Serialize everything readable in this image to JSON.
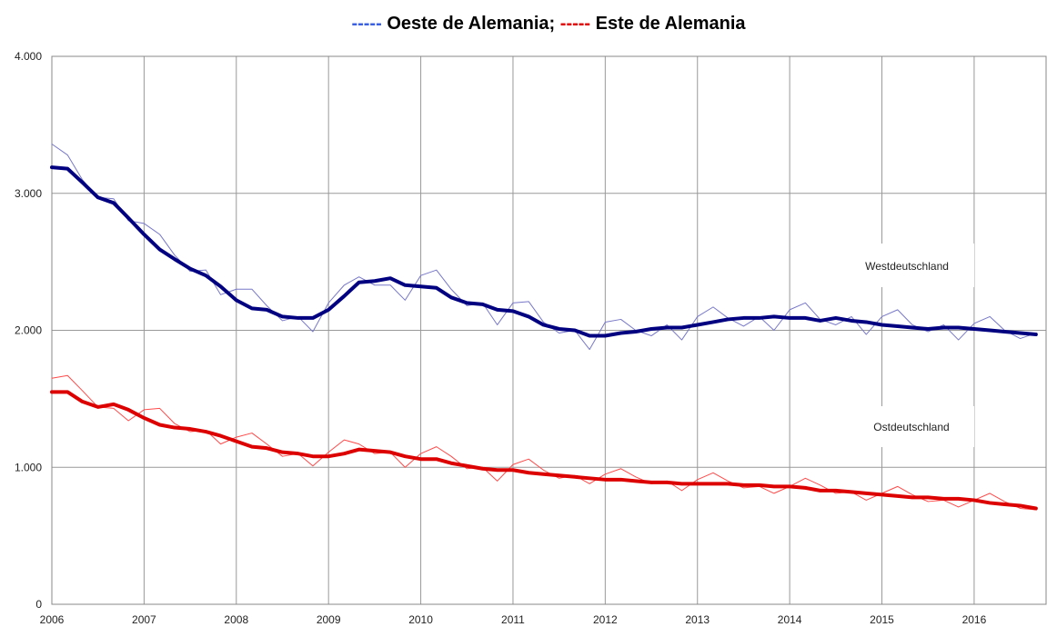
{
  "chart_data": {
    "type": "line",
    "title": [
      {
        "dash": "-----",
        "text": "Oeste de Alemania;",
        "color": "#3a5fe0"
      },
      {
        "dash": "-----",
        "text": "Este de Alemania",
        "color": "#e00000"
      }
    ],
    "annotations": [
      "Westdeutschland",
      "Ostdeutschland"
    ],
    "x": [
      2006,
      2006.17,
      2006.33,
      2006.5,
      2006.67,
      2006.83,
      2007,
      2007.17,
      2007.33,
      2007.5,
      2007.67,
      2007.83,
      2008,
      2008.17,
      2008.33,
      2008.5,
      2008.67,
      2008.83,
      2009,
      2009.17,
      2009.33,
      2009.5,
      2009.67,
      2009.83,
      2010,
      2010.17,
      2010.33,
      2010.5,
      2010.67,
      2010.83,
      2011,
      2011.17,
      2011.33,
      2011.5,
      2011.67,
      2011.83,
      2012,
      2012.17,
      2012.33,
      2012.5,
      2012.67,
      2012.83,
      2013,
      2013.17,
      2013.33,
      2013.5,
      2013.67,
      2013.83,
      2014,
      2014.17,
      2014.33,
      2014.5,
      2014.67,
      2014.83,
      2015,
      2015.17,
      2015.33,
      2015.5,
      2015.67,
      2015.83,
      2016,
      2016.17,
      2016.33,
      2016.5,
      2016.67
    ],
    "series": [
      {
        "color": "#7878c8",
        "width": 1,
        "values": [
          3360,
          3280,
          3100,
          2970,
          2960,
          2800,
          2780,
          2700,
          2550,
          2430,
          2440,
          2260,
          2300,
          2300,
          2180,
          2070,
          2100,
          1990,
          2200,
          2330,
          2390,
          2330,
          2330,
          2220,
          2400,
          2440,
          2300,
          2180,
          2200,
          2040,
          2200,
          2210,
          2060,
          1980,
          2000,
          1860,
          2060,
          2080,
          2000,
          1960,
          2040,
          1930,
          2100,
          2170,
          2090,
          2030,
          2100,
          2000,
          2150,
          2200,
          2080,
          2040,
          2100,
          1970,
          2100,
          2150,
          2040,
          1990,
          2040,
          1930,
          2050,
          2100,
          2000,
          1940,
          1980
        ]
      },
      {
        "color": "#000080",
        "width": 4,
        "values": [
          3190,
          3180,
          3080,
          2970,
          2930,
          2820,
          2700,
          2590,
          2520,
          2450,
          2400,
          2320,
          2220,
          2160,
          2150,
          2100,
          2090,
          2090,
          2150,
          2250,
          2350,
          2360,
          2380,
          2330,
          2320,
          2310,
          2240,
          2200,
          2190,
          2150,
          2140,
          2100,
          2040,
          2010,
          2000,
          1960,
          1960,
          1980,
          1990,
          2010,
          2020,
          2020,
          2040,
          2060,
          2080,
          2090,
          2090,
          2100,
          2090,
          2090,
          2070,
          2090,
          2070,
          2060,
          2040,
          2030,
          2020,
          2010,
          2020,
          2020,
          2010,
          2000,
          1990,
          1980,
          1970
        ]
      },
      {
        "color": "#ff4a4a",
        "width": 1,
        "values": [
          1650,
          1670,
          1560,
          1440,
          1430,
          1340,
          1420,
          1430,
          1320,
          1260,
          1270,
          1170,
          1220,
          1250,
          1170,
          1080,
          1100,
          1010,
          1110,
          1200,
          1170,
          1100,
          1110,
          1000,
          1100,
          1150,
          1080,
          990,
          1000,
          900,
          1020,
          1060,
          980,
          920,
          940,
          880,
          950,
          990,
          930,
          880,
          900,
          830,
          910,
          960,
          900,
          850,
          860,
          810,
          860,
          920,
          870,
          810,
          820,
          760,
          810,
          860,
          800,
          750,
          760,
          710,
          760,
          810,
          750,
          700,
          690
        ]
      },
      {
        "color": "#dd0000",
        "width": 4,
        "values": [
          1550,
          1550,
          1480,
          1440,
          1460,
          1420,
          1360,
          1310,
          1290,
          1280,
          1260,
          1230,
          1190,
          1150,
          1140,
          1110,
          1100,
          1080,
          1080,
          1100,
          1130,
          1120,
          1110,
          1080,
          1060,
          1060,
          1030,
          1010,
          990,
          980,
          980,
          960,
          950,
          940,
          930,
          920,
          910,
          910,
          900,
          890,
          890,
          880,
          880,
          880,
          880,
          870,
          870,
          860,
          860,
          850,
          830,
          830,
          820,
          810,
          800,
          790,
          780,
          780,
          770,
          770,
          760,
          740,
          730,
          720,
          700
        ]
      }
    ],
    "xlim": [
      2006,
      2016.78
    ],
    "xticks": [
      2006,
      2007,
      2008,
      2009,
      2010,
      2011,
      2012,
      2013,
      2014,
      2015,
      2016
    ],
    "ylim": [
      0,
      4000
    ],
    "yticks": [
      0,
      {
        "value": 1000,
        "label": "1.000"
      },
      {
        "value": 2000,
        "label": "2.000"
      },
      {
        "value": 3000,
        "label": "3.000"
      },
      {
        "value": 4000,
        "label": "4.000"
      }
    ],
    "grid": true
  }
}
